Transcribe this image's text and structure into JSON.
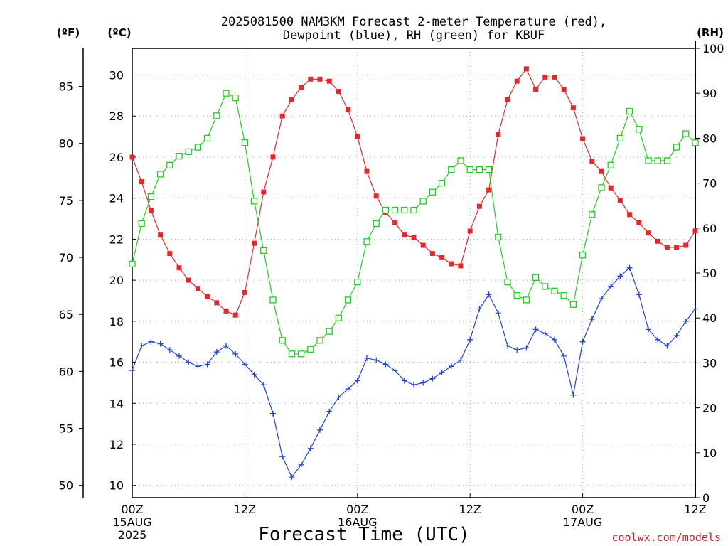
{
  "chart_data": {
    "type": "line",
    "title_line1": "2025081500 NAM3KM Forecast 2-meter Temperature (red),",
    "title_line2": "Dewpoint (blue), RH (green) for KBUF",
    "xlabel": "Forecast Time (UTC)",
    "axis_unit_f": "(ºF)",
    "axis_unit_c": "(ºC)",
    "axis_unit_rh": "(RH)",
    "watermark": "coolwx.com/models",
    "x_range_hours": [
      0,
      60
    ],
    "c_range": [
      9.4,
      31.3
    ],
    "rh_range": [
      0,
      100
    ],
    "x_ticks": [
      {
        "hour": 0,
        "lines": [
          "00Z",
          "15AUG",
          "2025"
        ]
      },
      {
        "hour": 12,
        "lines": [
          "12Z"
        ]
      },
      {
        "hour": 24,
        "lines": [
          "00Z",
          "16AUG"
        ]
      },
      {
        "hour": 36,
        "lines": [
          "12Z"
        ]
      },
      {
        "hour": 48,
        "lines": [
          "00Z",
          "17AUG"
        ]
      },
      {
        "hour": 60,
        "lines": [
          "12Z"
        ]
      }
    ],
    "c_ticks": [
      10,
      12,
      14,
      16,
      18,
      20,
      22,
      24,
      26,
      28,
      30
    ],
    "f_ticks": [
      50,
      55,
      60,
      65,
      70,
      75,
      80,
      85
    ],
    "rh_ticks": [
      0,
      10,
      20,
      30,
      40,
      50,
      60,
      70,
      80,
      90,
      100
    ],
    "colors": {
      "temperature": "#e8262a",
      "dewpoint": "#2244dd",
      "rh": "#22cc22",
      "grid": "#aaaaaa",
      "watermark": "#cc2222"
    },
    "series": [
      {
        "key": "temperature",
        "axis": "c",
        "marker": "square-filled",
        "values": [
          26.0,
          24.8,
          23.4,
          22.2,
          21.3,
          20.6,
          20.0,
          19.6,
          19.2,
          18.9,
          18.5,
          18.3,
          19.4,
          21.8,
          24.3,
          26.0,
          28.0,
          28.8,
          29.4,
          29.8,
          29.8,
          29.7,
          29.2,
          28.3,
          27.0,
          25.3,
          24.1,
          23.3,
          22.8,
          22.2,
          22.1,
          21.7,
          21.3,
          21.1,
          20.8,
          20.7,
          22.4,
          23.6,
          24.4,
          27.1,
          28.8,
          29.7,
          30.3,
          29.3,
          29.9,
          29.9,
          29.3,
          28.4,
          26.9,
          25.8,
          25.3,
          24.5,
          23.9,
          23.2,
          22.8,
          22.3,
          21.9,
          21.6,
          21.6,
          21.7,
          22.4
        ]
      },
      {
        "key": "dewpoint",
        "axis": "c",
        "marker": "plus",
        "values": [
          15.6,
          16.8,
          17.0,
          16.9,
          16.6,
          16.3,
          16.0,
          15.8,
          15.9,
          16.5,
          16.8,
          16.4,
          15.9,
          15.4,
          14.9,
          13.5,
          11.4,
          10.4,
          11.0,
          11.8,
          12.7,
          13.6,
          14.3,
          14.7,
          15.1,
          16.2,
          16.1,
          15.9,
          15.6,
          15.1,
          14.9,
          15.0,
          15.2,
          15.5,
          15.8,
          16.1,
          17.1,
          18.6,
          19.3,
          18.4,
          16.8,
          16.6,
          16.7,
          17.6,
          17.4,
          17.1,
          16.3,
          14.4,
          17.0,
          18.1,
          19.1,
          19.7,
          20.2,
          20.6,
          19.3,
          17.6,
          17.1,
          16.8,
          17.3,
          18.0,
          18.6
        ]
      },
      {
        "key": "rh",
        "axis": "rh",
        "marker": "square-open",
        "values": [
          52,
          61,
          67,
          72,
          74,
          76,
          77,
          78,
          80,
          85,
          90,
          89,
          79,
          66,
          55,
          44,
          35,
          32,
          32,
          33,
          35,
          37,
          40,
          44,
          48,
          57,
          61,
          64,
          64,
          64,
          64,
          66,
          68,
          70,
          73,
          75,
          73,
          73,
          73,
          58,
          48,
          45,
          44,
          49,
          47,
          46,
          45,
          43,
          54,
          63,
          69,
          74,
          80,
          86,
          82,
          75,
          75,
          75,
          78,
          81,
          79
        ]
      }
    ]
  }
}
